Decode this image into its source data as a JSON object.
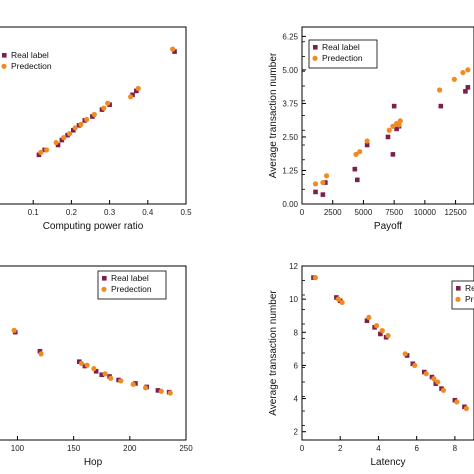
{
  "colors": {
    "real": "#7b1f4f",
    "pred": "#f08a22",
    "axis": "#000000"
  },
  "chart_data": [
    {
      "type": "scatter",
      "xlabel": "Computing power ratio",
      "ylabel": "",
      "xlim": [
        0.0,
        0.5
      ],
      "ylim": [
        1.0,
        4.6
      ],
      "xticks": [
        "0.1",
        "0.2",
        "0.3",
        "0.4",
        "0.5"
      ],
      "xtick_values": [
        0.1,
        0.2,
        0.3,
        0.4,
        0.5
      ],
      "yticks": [],
      "ytick_values": [],
      "legend": {
        "position": "top-left",
        "labels": [
          "Real label",
          "Predection"
        ]
      },
      "series": [
        {
          "name": "Real label",
          "marker": "square",
          "x": [
            0.115,
            0.13,
            0.165,
            0.175,
            0.19,
            0.205,
            0.22,
            0.235,
            0.255,
            0.28,
            0.3,
            0.36,
            0.37,
            0.47
          ],
          "y": [
            2.0,
            2.1,
            2.2,
            2.3,
            2.4,
            2.5,
            2.6,
            2.7,
            2.78,
            2.92,
            3.02,
            3.22,
            3.3,
            4.1
          ]
        },
        {
          "name": "Predection",
          "marker": "circle",
          "x": [
            0.12,
            0.135,
            0.16,
            0.18,
            0.195,
            0.21,
            0.225,
            0.24,
            0.26,
            0.285,
            0.295,
            0.355,
            0.375,
            0.465
          ],
          "y": [
            2.05,
            2.1,
            2.25,
            2.35,
            2.43,
            2.55,
            2.62,
            2.72,
            2.82,
            2.95,
            3.05,
            3.18,
            3.35,
            4.15
          ]
        }
      ]
    },
    {
      "type": "scatter",
      "xlabel": "Payoff",
      "ylabel": "Average transaction number",
      "xlim": [
        0,
        14000
      ],
      "ylim": [
        0,
        6.6
      ],
      "xticks": [
        "0",
        "2500",
        "5000",
        "7500",
        "10000",
        "12500"
      ],
      "xtick_values": [
        0,
        2500,
        5000,
        7500,
        10000,
        12500
      ],
      "yticks": [
        "0.00",
        "1.25",
        "2.50",
        "3.75",
        "5.00",
        "6.25"
      ],
      "ytick_values": [
        0,
        1.25,
        2.5,
        3.75,
        5.0,
        6.25
      ],
      "legend": {
        "position": "top-right",
        "labels": [
          "Real label",
          "Predection"
        ]
      },
      "series": [
        {
          "name": "Real label",
          "marker": "square",
          "x": [
            1100,
            1700,
            1900,
            4300,
            4500,
            5300,
            7000,
            7400,
            7500,
            7700,
            7900,
            11300,
            13300,
            13500
          ],
          "y": [
            0.45,
            0.35,
            0.8,
            1.3,
            0.9,
            2.2,
            2.5,
            1.85,
            3.65,
            2.8,
            2.9,
            3.65,
            4.2,
            4.35
          ]
        },
        {
          "name": "Predection",
          "marker": "circle",
          "x": [
            1100,
            1700,
            2000,
            4400,
            4700,
            5300,
            7100,
            7400,
            7700,
            7900,
            8000,
            11200,
            12400,
            13100,
            13500
          ],
          "y": [
            0.75,
            0.8,
            1.05,
            1.85,
            1.95,
            2.35,
            2.75,
            2.9,
            3.0,
            2.95,
            3.1,
            4.25,
            4.65,
            4.9,
            5.0
          ]
        }
      ]
    },
    {
      "type": "scatter",
      "xlabel": "Hop",
      "ylabel": "",
      "xlim": [
        80,
        250
      ],
      "ylim": [
        0,
        10
      ],
      "xticks": [
        "100",
        "150",
        "200",
        "250"
      ],
      "xtick_values": [
        100,
        150,
        200,
        250
      ],
      "yticks": [],
      "ytick_values": [],
      "legend": {
        "position": "top-right",
        "labels": [
          "Real label",
          "Predection"
        ]
      },
      "series": [
        {
          "name": "Real label",
          "marker": "square",
          "x": [
            80,
            98,
            120,
            155,
            160,
            170,
            175,
            182,
            190,
            205,
            215,
            225,
            235
          ],
          "y": [
            7.35,
            6.2,
            5.1,
            4.5,
            4.25,
            3.95,
            3.75,
            3.65,
            3.45,
            3.25,
            3.05,
            2.85,
            2.75
          ]
        },
        {
          "name": "Predection",
          "marker": "circle",
          "x": [
            80,
            97,
            121,
            157,
            162,
            168,
            178,
            183,
            192,
            203,
            214,
            228,
            236
          ],
          "y": [
            7.1,
            6.3,
            4.95,
            4.4,
            4.3,
            4.1,
            3.8,
            3.55,
            3.4,
            3.2,
            3.0,
            2.8,
            2.7
          ]
        }
      ]
    },
    {
      "type": "scatter",
      "xlabel": "Latency",
      "ylabel": "Average transaction number",
      "xlim": [
        0,
        9
      ],
      "ylim": [
        1.5,
        12
      ],
      "xticks": [
        "0",
        "2",
        "4",
        "6",
        "8"
      ],
      "xtick_values": [
        0,
        2,
        4,
        6,
        8
      ],
      "yticks": [
        "2",
        "4",
        "6",
        "8",
        "10",
        "12"
      ],
      "ytick_values": [
        2,
        4,
        6,
        8,
        10,
        12
      ],
      "legend": {
        "position": "top-right",
        "labels": [
          "Real label",
          "Predection"
        ]
      },
      "series": [
        {
          "name": "Real label",
          "marker": "square",
          "x": [
            0.6,
            1.8,
            2.0,
            3.4,
            3.8,
            4.1,
            4.4,
            5.5,
            5.8,
            6.4,
            6.8,
            7.0,
            7.3,
            8.0,
            8.5
          ],
          "y": [
            11.3,
            10.1,
            9.9,
            8.7,
            8.3,
            7.9,
            7.7,
            6.6,
            6.1,
            5.6,
            5.3,
            4.9,
            4.6,
            3.9,
            3.5
          ]
        },
        {
          "name": "Predection",
          "marker": "circle",
          "x": [
            0.7,
            1.9,
            2.1,
            3.5,
            3.9,
            4.2,
            4.5,
            5.4,
            5.9,
            6.5,
            6.9,
            7.1,
            7.4,
            8.1,
            8.6
          ],
          "y": [
            11.3,
            10.0,
            9.8,
            8.9,
            8.4,
            8.1,
            7.8,
            6.7,
            6.0,
            5.5,
            5.2,
            5.0,
            4.5,
            3.8,
            3.4
          ]
        }
      ]
    }
  ]
}
